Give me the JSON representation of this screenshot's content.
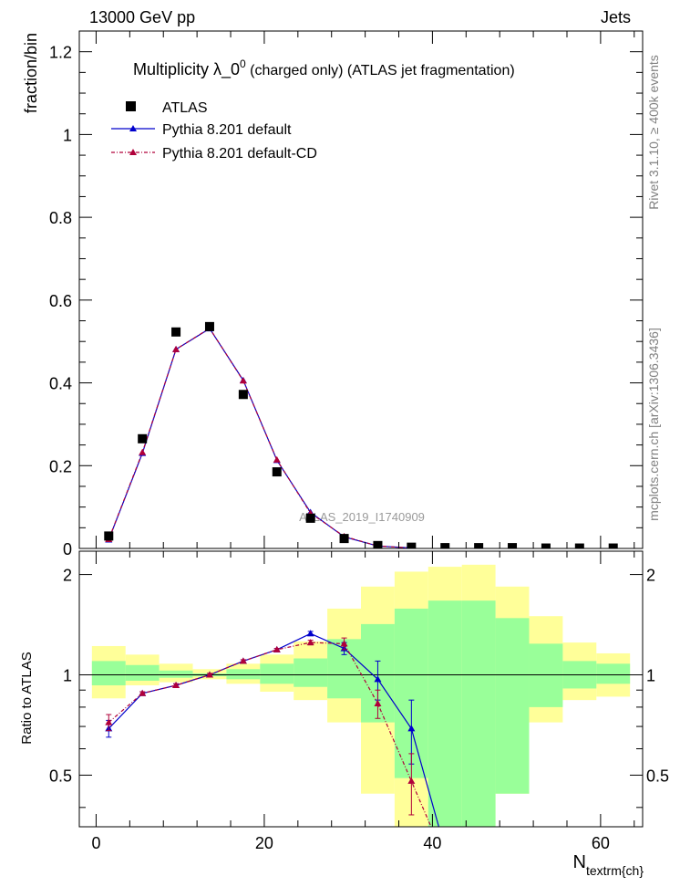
{
  "header": {
    "left": "13000 GeV pp",
    "right": "Jets"
  },
  "side_labels": {
    "rivet": "Rivet 3.1.10, ≥ 400k events",
    "mcplots": "mcplots.cern.ch [arXiv:1306.3436]"
  },
  "chart_data": {
    "title": {
      "main": "Multiplicity  λ_0",
      "superscript": "0",
      "suffix": " (charged only) (ATLAS jet fragmentation)"
    },
    "watermark": "ATLAS_2019_I1740909",
    "xlabel": {
      "main": "N",
      "subscript": "textrm{ch}"
    },
    "main_panel": {
      "type": "scatter",
      "ylabel": "fraction/bin",
      "xlim": [
        -2,
        65
      ],
      "ylim": [
        0,
        1.25
      ],
      "yticks": [
        "0",
        "0.2",
        "0.4",
        "0.6",
        "0.8",
        "1",
        "1.2"
      ],
      "ytick_values": [
        0,
        0.2,
        0.4,
        0.6,
        0.8,
        1.0,
        1.2
      ],
      "legend": [
        {
          "label": "ATLAS",
          "color": "#000000",
          "marker": "square"
        },
        {
          "label": "Pythia 8.201 default",
          "color": "#0000cc",
          "marker": "triangle",
          "line": "solid"
        },
        {
          "label": "Pythia 8.201 default-CD",
          "color": "#b0003a",
          "marker": "triangle",
          "line": "dashdot"
        }
      ],
      "x": [
        1.5,
        5.5,
        9.5,
        13.5,
        17.5,
        21.5,
        25.5,
        29.5,
        33.5,
        37.5,
        41.5,
        45.5,
        49.5,
        53.5,
        57.5,
        61.5
      ],
      "series": [
        {
          "name": "ATLAS",
          "values": [
            0.03,
            0.265,
            0.523,
            0.536,
            0.372,
            0.185,
            0.073,
            0.024,
            0.007,
            0.003,
            0.002,
            0.002,
            0.002,
            0.001,
            0.001,
            0.001
          ]
        },
        {
          "name": "Pythia 8.201 default",
          "values": [
            0.021,
            0.23,
            0.481,
            0.531,
            0.406,
            0.213,
            0.087,
            0.028,
            0.006,
            0.001
          ]
        },
        {
          "name": "Pythia 8.201 default-CD",
          "values": [
            0.022,
            0.232,
            0.481,
            0.532,
            0.405,
            0.214,
            0.085,
            0.029,
            0.006,
            0.001
          ]
        }
      ]
    },
    "ratio_panel": {
      "type": "line",
      "ylabel": "Ratio to ATLAS",
      "xlim": [
        -2,
        65
      ],
      "ylim": [
        0.35,
        2.35
      ],
      "ylog": true,
      "yticks": [
        "0.5",
        "1",
        "2"
      ],
      "ytick_values": [
        0.5,
        1.0,
        2.0
      ],
      "xticks": [
        "0",
        "20",
        "40",
        "60"
      ],
      "xtick_values": [
        0,
        20,
        40,
        60
      ],
      "bin_edges": [
        -0.5,
        3.5,
        7.5,
        11.5,
        15.5,
        19.5,
        23.5,
        27.5,
        31.5,
        35.5,
        39.5,
        43.5,
        47.5,
        51.5,
        55.5,
        59.5,
        63.5
      ],
      "band_yellow": [
        [
          0.85,
          1.22
        ],
        [
          0.93,
          1.15
        ],
        [
          0.95,
          1.08
        ],
        [
          0.97,
          1.04
        ],
        [
          0.94,
          1.08
        ],
        [
          0.89,
          1.15
        ],
        [
          0.84,
          1.26
        ],
        [
          0.72,
          1.58
        ],
        [
          0.44,
          1.84
        ],
        [
          0.35,
          2.04
        ],
        [
          0.35,
          2.11
        ],
        [
          0.35,
          2.14
        ],
        [
          0.44,
          1.84
        ],
        [
          0.72,
          1.5
        ],
        [
          0.84,
          1.25
        ],
        [
          0.86,
          1.16
        ]
      ],
      "band_green": [
        [
          0.93,
          1.1
        ],
        [
          0.96,
          1.07
        ],
        [
          0.98,
          1.03
        ],
        [
          0.99,
          1.01
        ],
        [
          0.97,
          1.04
        ],
        [
          0.94,
          1.08
        ],
        [
          0.92,
          1.12
        ],
        [
          0.85,
          1.28
        ],
        [
          0.72,
          1.42
        ],
        [
          0.49,
          1.58
        ],
        [
          0.35,
          1.67
        ],
        [
          0.35,
          1.67
        ],
        [
          0.44,
          1.48
        ],
        [
          0.8,
          1.24
        ],
        [
          0.91,
          1.1
        ],
        [
          0.94,
          1.08
        ]
      ],
      "series": [
        {
          "name": "Pythia 8.201 default",
          "values": [
            0.69,
            0.88,
            0.93,
            1.0,
            1.1,
            1.19,
            1.33,
            1.2,
            0.97,
            0.69,
            0.3
          ],
          "err": [
            0.04,
            0.01,
            0.01,
            0.01,
            0.01,
            0.01,
            0.02,
            0.05,
            0.13,
            0.15,
            0.0
          ]
        },
        {
          "name": "Pythia 8.201 default-CD",
          "values": [
            0.72,
            0.88,
            0.93,
            1.0,
            1.1,
            1.19,
            1.25,
            1.24,
            0.82,
            0.48,
            0.28
          ],
          "err": [
            0.04,
            0.01,
            0.01,
            0.01,
            0.01,
            0.01,
            0.02,
            0.05,
            0.08,
            0.1,
            0.0
          ]
        }
      ]
    }
  }
}
